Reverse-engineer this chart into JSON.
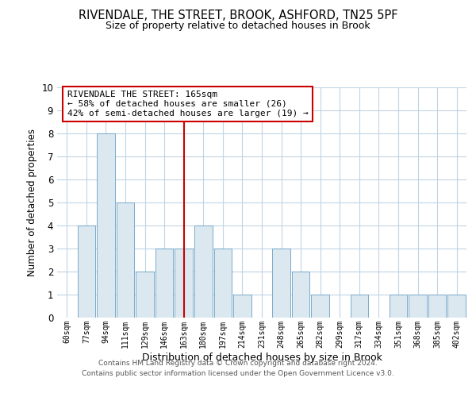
{
  "title": "RIVENDALE, THE STREET, BROOK, ASHFORD, TN25 5PF",
  "subtitle": "Size of property relative to detached houses in Brook",
  "xlabel": "Distribution of detached houses by size in Brook",
  "ylabel": "Number of detached properties",
  "categories": [
    "60sqm",
    "77sqm",
    "94sqm",
    "111sqm",
    "129sqm",
    "146sqm",
    "163sqm",
    "180sqm",
    "197sqm",
    "214sqm",
    "231sqm",
    "248sqm",
    "265sqm",
    "282sqm",
    "299sqm",
    "317sqm",
    "334sqm",
    "351sqm",
    "368sqm",
    "385sqm",
    "402sqm"
  ],
  "values": [
    0,
    4,
    8,
    5,
    2,
    3,
    3,
    4,
    3,
    1,
    0,
    3,
    2,
    1,
    0,
    1,
    0,
    1,
    1,
    1,
    1
  ],
  "bar_color": "#dce8f0",
  "bar_edge_color": "#7aaacb",
  "highlight_bar_index": 6,
  "highlight_line_color": "#cc0000",
  "annotation_line1": "RIVENDALE THE STREET: 165sqm",
  "annotation_line2": "← 58% of detached houses are smaller (26)",
  "annotation_line3": "42% of semi-detached houses are larger (19) →",
  "annotation_box_color": "#ffffff",
  "annotation_box_edge": "#cc0000",
  "ylim": [
    0,
    10
  ],
  "yticks": [
    0,
    1,
    2,
    3,
    4,
    5,
    6,
    7,
    8,
    9,
    10
  ],
  "footer_line1": "Contains HM Land Registry data © Crown copyright and database right 2024.",
  "footer_line2": "Contains public sector information licensed under the Open Government Licence v3.0.",
  "background_color": "#ffffff",
  "grid_color": "#c0d4e4"
}
